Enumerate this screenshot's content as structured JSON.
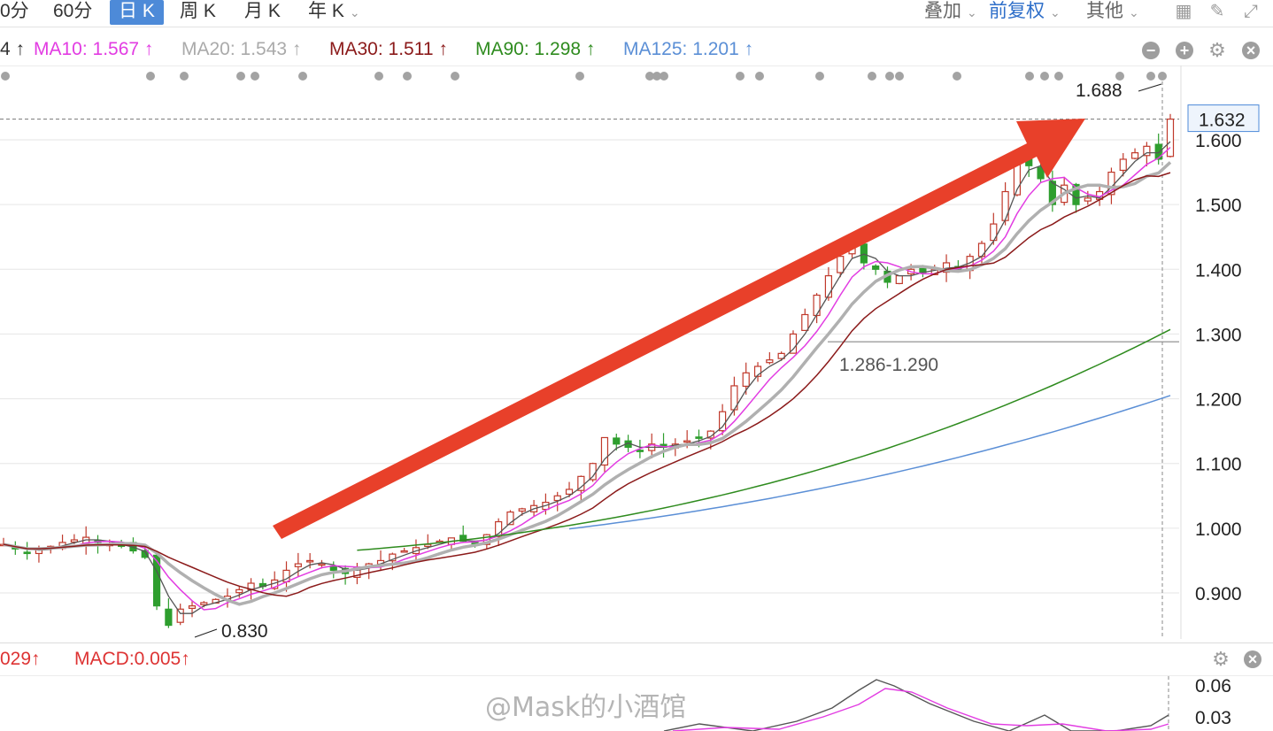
{
  "toolbar": {
    "periods": [
      {
        "label": "0分"
      },
      {
        "label": "60分"
      },
      {
        "label": "日 K",
        "active": true
      },
      {
        "label": "周 K"
      },
      {
        "label": "月 K"
      },
      {
        "label": "年 K"
      }
    ],
    "right": {
      "overlay_label": "叠加",
      "adjust_label": "前复权",
      "other_label": "其他"
    },
    "icons": [
      "grid-icon",
      "brush-icon",
      "fullscreen-icon"
    ]
  },
  "ma_legend": {
    "prefix": "4 ↑",
    "items": [
      {
        "label": "MA10: 1.567 ↑",
        "color": "#e23ce2"
      },
      {
        "label": "MA20: 1.543 ↑",
        "color": "#aaaaaa"
      },
      {
        "label": "MA30: 1.511 ↑",
        "color": "#8b1a1a"
      },
      {
        "label": "MA90: 1.298 ↑",
        "color": "#2e8b1e"
      },
      {
        "label": "MA125: 1.201 ↑",
        "color": "#5b8fd6"
      }
    ]
  },
  "macd_legend": {
    "prefix": "029↑",
    "macd": "MACD:0.005↑"
  },
  "watermark": "@Mask的小酒馆",
  "chart_data": {
    "type": "candlestick",
    "y_axis": {
      "ticks": [
        "1.600",
        "1.500",
        "1.400",
        "1.300",
        "1.200",
        "1.100",
        "1.000",
        "0.900"
      ],
      "tick_values": [
        1.6,
        1.5,
        1.4,
        1.3,
        1.2,
        1.1,
        1.0,
        0.9
      ]
    },
    "current_price": "1.632",
    "annotations": {
      "high": "1.688",
      "low": "0.830",
      "gap": "1.286-1.290"
    },
    "macd_axis": {
      "ticks": [
        "0.06",
        "0.03"
      ]
    },
    "colors": {
      "up": "#c0392b",
      "down": "#2e9e2e",
      "arrow": "#e8402a",
      "ma5": "#555555",
      "ma10": "#e23ce2",
      "ma20": "#b0b0b0",
      "ma30": "#8b1a1a",
      "ma90": "#2e8b1e",
      "ma125": "#5b8fd6"
    },
    "trend": "up",
    "closes": [
      0.975,
      0.968,
      0.962,
      0.968,
      0.972,
      0.978,
      0.982,
      0.986,
      0.978,
      0.975,
      0.972,
      0.965,
      0.955,
      0.88,
      0.85,
      0.875,
      0.88,
      0.885,
      0.89,
      0.895,
      0.905,
      0.915,
      0.91,
      0.92,
      0.935,
      0.945,
      0.95,
      0.945,
      0.935,
      0.93,
      0.94,
      0.945,
      0.95,
      0.96,
      0.965,
      0.97,
      0.975,
      0.98,
      0.985,
      0.98,
      0.975,
      0.99,
      1.01,
      1.025,
      1.03,
      1.035,
      1.04,
      1.05,
      1.06,
      1.08,
      1.1,
      1.14,
      1.13,
      1.125,
      1.12,
      1.13,
      1.125,
      1.13,
      1.135,
      1.14,
      1.15,
      1.18,
      1.22,
      1.24,
      1.25,
      1.26,
      1.27,
      1.3,
      1.33,
      1.36,
      1.39,
      1.42,
      1.44,
      1.41,
      1.4,
      1.38,
      1.39,
      1.4,
      1.395,
      1.4,
      1.41,
      1.4,
      1.42,
      1.44,
      1.47,
      1.52,
      1.58,
      1.56,
      1.54,
      1.5,
      1.53,
      1.5,
      1.51,
      1.52,
      1.55,
      1.57,
      1.58,
      1.59,
      1.57,
      1.632
    ]
  }
}
